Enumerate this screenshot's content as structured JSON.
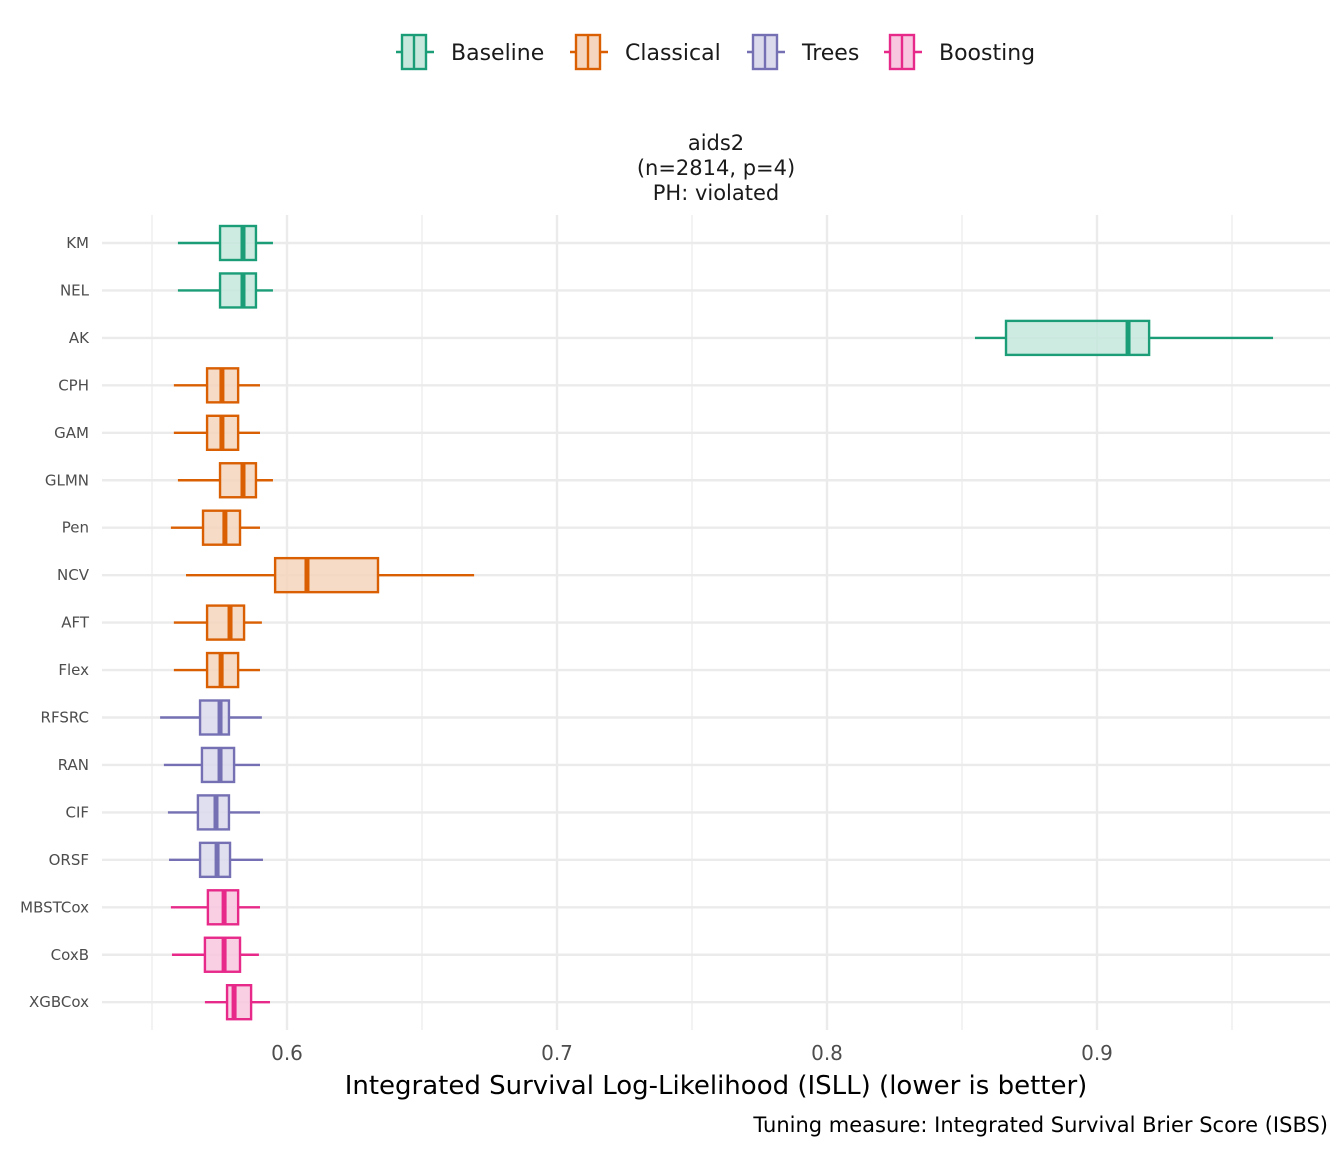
{
  "chart_data": {
    "type": "boxplot",
    "orientation": "horizontal",
    "facet_title": [
      "aids2",
      "(n=2814, p=4)",
      "PH: violated"
    ],
    "xlabel": "Integrated Survival Log-Likelihood (ISLL) (lower is better)",
    "ylabel": "",
    "caption": "Tuning measure: Integrated Survival Brier Score (ISBS)",
    "xlim": [
      0.5315,
      0.986
    ],
    "x_ticks": [
      0.6,
      0.7,
      0.8,
      0.9
    ],
    "x_tick_labels": [
      "0.6",
      "0.7",
      "0.8",
      "0.9"
    ],
    "x_minor_grid": [
      0.55,
      0.65,
      0.75,
      0.85,
      0.95
    ],
    "grid": true,
    "legend": {
      "position": "top",
      "entries": [
        {
          "name": "Baseline",
          "color": "#1b9e77",
          "fill": "#c6e8dd"
        },
        {
          "name": "Classical",
          "color": "#d95f02",
          "fill": "#f5d5bd"
        },
        {
          "name": "Trees",
          "color": "#7570b3",
          "fill": "#dbd9ec"
        },
        {
          "name": "Boosting",
          "color": "#e7298a",
          "fill": "#f8c7df"
        }
      ]
    },
    "series": [
      {
        "name": "KM",
        "group": "Baseline",
        "whisker_low": 0.5596,
        "q1": 0.5752,
        "median": 0.5837,
        "q3": 0.5885,
        "whisker_high": 0.5948
      },
      {
        "name": "NEL",
        "group": "Baseline",
        "whisker_low": 0.5596,
        "q1": 0.5752,
        "median": 0.5837,
        "q3": 0.5885,
        "whisker_high": 0.5948
      },
      {
        "name": "AK",
        "group": "Baseline",
        "whisker_low": 0.8548,
        "q1": 0.8663,
        "median": 0.9115,
        "q3": 0.9193,
        "whisker_high": 0.9652
      },
      {
        "name": "CPH",
        "group": "Classical",
        "whisker_low": 0.5581,
        "q1": 0.5704,
        "median": 0.5759,
        "q3": 0.5819,
        "whisker_high": 0.59
      },
      {
        "name": "GAM",
        "group": "Classical",
        "whisker_low": 0.5581,
        "q1": 0.5704,
        "median": 0.5759,
        "q3": 0.5819,
        "whisker_high": 0.59
      },
      {
        "name": "GLMN",
        "group": "Classical",
        "whisker_low": 0.5596,
        "q1": 0.5752,
        "median": 0.5837,
        "q3": 0.5885,
        "whisker_high": 0.5948
      },
      {
        "name": "Pen",
        "group": "Classical",
        "whisker_low": 0.557,
        "q1": 0.5689,
        "median": 0.577,
        "q3": 0.5826,
        "whisker_high": 0.59
      },
      {
        "name": "NCV",
        "group": "Classical",
        "whisker_low": 0.5626,
        "q1": 0.5956,
        "median": 0.6074,
        "q3": 0.6337,
        "whisker_high": 0.6693
      },
      {
        "name": "AFT",
        "group": "Classical",
        "whisker_low": 0.5581,
        "q1": 0.5704,
        "median": 0.5789,
        "q3": 0.5841,
        "whisker_high": 0.5907
      },
      {
        "name": "Flex",
        "group": "Classical",
        "whisker_low": 0.5581,
        "q1": 0.5704,
        "median": 0.5756,
        "q3": 0.5819,
        "whisker_high": 0.59
      },
      {
        "name": "RFSRC",
        "group": "Trees",
        "whisker_low": 0.553,
        "q1": 0.5678,
        "median": 0.5752,
        "q3": 0.5785,
        "whisker_high": 0.5907
      },
      {
        "name": "RAN",
        "group": "Trees",
        "whisker_low": 0.5544,
        "q1": 0.5685,
        "median": 0.5752,
        "q3": 0.5804,
        "whisker_high": 0.59
      },
      {
        "name": "CIF",
        "group": "Trees",
        "whisker_low": 0.5559,
        "q1": 0.567,
        "median": 0.5737,
        "q3": 0.5785,
        "whisker_high": 0.59
      },
      {
        "name": "ORSF",
        "group": "Trees",
        "whisker_low": 0.5563,
        "q1": 0.5678,
        "median": 0.5741,
        "q3": 0.5789,
        "whisker_high": 0.5911
      },
      {
        "name": "MBSTCox",
        "group": "Boosting",
        "whisker_low": 0.557,
        "q1": 0.5707,
        "median": 0.5767,
        "q3": 0.5819,
        "whisker_high": 0.59
      },
      {
        "name": "CoxB",
        "group": "Boosting",
        "whisker_low": 0.5574,
        "q1": 0.5696,
        "median": 0.5767,
        "q3": 0.5826,
        "whisker_high": 0.5896
      },
      {
        "name": "XGBCox",
        "group": "Boosting",
        "whisker_low": 0.5696,
        "q1": 0.5778,
        "median": 0.5804,
        "q3": 0.5867,
        "whisker_high": 0.5937
      }
    ]
  }
}
